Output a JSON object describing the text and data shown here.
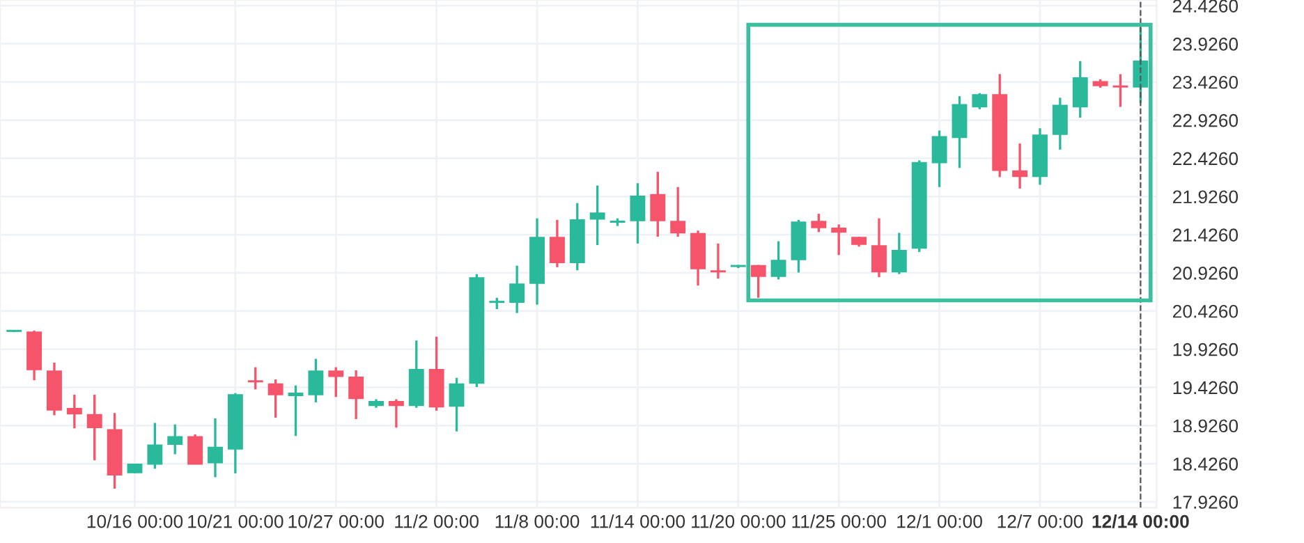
{
  "chart_data": {
    "type": "candlestick",
    "categories": [
      null,
      null,
      null,
      null,
      null,
      null,
      "10/16 00:00",
      null,
      null,
      null,
      null,
      "10/21 00:00",
      null,
      null,
      null,
      null,
      "10/27 00:00",
      null,
      null,
      null,
      null,
      "11/2 00:00",
      null,
      null,
      null,
      null,
      "11/8 00:00",
      null,
      null,
      null,
      null,
      "11/14 00:00",
      null,
      null,
      null,
      null,
      "11/20 00:00",
      null,
      null,
      null,
      null,
      "11/25 00:00",
      null,
      null,
      null,
      null,
      "12/1 00:00",
      null,
      null,
      null,
      null,
      "12/7 00:00",
      null,
      null,
      null,
      null,
      "12/14 00:00"
    ],
    "ohlc": [
      [
        20.16,
        20.17,
        20.15,
        20.16
      ],
      [
        20.15,
        20.17,
        19.52,
        19.66
      ],
      [
        19.64,
        19.75,
        19.06,
        19.13
      ],
      [
        19.15,
        19.33,
        18.89,
        19.08
      ],
      [
        19.07,
        19.33,
        18.47,
        18.9
      ],
      [
        18.87,
        19.09,
        18.1,
        18.28
      ],
      [
        18.31,
        18.42,
        18.3,
        18.42
      ],
      [
        18.42,
        18.96,
        18.36,
        18.67
      ],
      [
        18.68,
        18.94,
        18.55,
        18.78
      ],
      [
        18.78,
        18.81,
        18.42,
        18.42
      ],
      [
        18.44,
        19.02,
        18.25,
        18.64
      ],
      [
        18.62,
        19.35,
        18.3,
        19.33
      ],
      [
        19.51,
        19.69,
        19.4,
        19.5
      ],
      [
        19.47,
        19.53,
        19.03,
        19.33
      ],
      [
        19.32,
        19.45,
        18.79,
        19.35
      ],
      [
        19.33,
        19.8,
        19.23,
        19.64
      ],
      [
        19.64,
        19.69,
        19.3,
        19.57
      ],
      [
        19.56,
        19.65,
        19.01,
        19.28
      ],
      [
        19.19,
        19.27,
        19.16,
        19.24
      ],
      [
        19.24,
        19.27,
        18.9,
        19.19
      ],
      [
        19.19,
        20.04,
        19.16,
        19.66
      ],
      [
        19.66,
        20.09,
        19.12,
        19.17
      ],
      [
        19.18,
        19.55,
        18.85,
        19.47
      ],
      [
        19.48,
        20.91,
        19.43,
        20.86
      ],
      [
        20.54,
        20.6,
        20.45,
        20.55
      ],
      [
        20.54,
        21.02,
        20.4,
        20.78
      ],
      [
        20.79,
        21.64,
        20.51,
        21.39
      ],
      [
        21.39,
        21.62,
        21.0,
        21.06
      ],
      [
        21.06,
        21.84,
        20.96,
        21.62
      ],
      [
        21.63,
        22.07,
        21.29,
        21.71
      ],
      [
        21.59,
        21.64,
        21.54,
        21.6
      ],
      [
        21.61,
        22.1,
        21.31,
        21.93
      ],
      [
        21.95,
        22.25,
        21.4,
        21.61
      ],
      [
        21.6,
        22.05,
        21.4,
        21.45
      ],
      [
        21.44,
        21.48,
        20.76,
        20.98
      ],
      [
        20.95,
        21.31,
        20.85,
        20.94
      ],
      [
        21.01,
        21.03,
        20.99,
        21.02
      ],
      [
        21.02,
        21.03,
        20.6,
        20.88
      ],
      [
        20.88,
        21.34,
        20.84,
        21.09
      ],
      [
        21.1,
        21.62,
        20.93,
        21.59
      ],
      [
        21.6,
        21.7,
        21.46,
        21.52
      ],
      [
        21.51,
        21.56,
        21.16,
        21.46
      ],
      [
        21.39,
        21.4,
        21.27,
        21.3
      ],
      [
        21.28,
        21.64,
        20.87,
        20.94
      ],
      [
        20.94,
        21.45,
        20.91,
        21.22
      ],
      [
        21.25,
        22.4,
        21.2,
        22.37
      ],
      [
        22.37,
        22.79,
        22.05,
        22.71
      ],
      [
        22.7,
        23.24,
        22.3,
        23.13
      ],
      [
        23.1,
        23.28,
        23.07,
        23.26
      ],
      [
        23.26,
        23.53,
        22.18,
        22.27
      ],
      [
        22.26,
        22.62,
        22.03,
        22.19
      ],
      [
        22.19,
        22.82,
        22.08,
        22.73
      ],
      [
        22.74,
        23.22,
        22.54,
        23.12
      ],
      [
        23.1,
        23.7,
        22.96,
        23.48
      ],
      [
        23.43,
        23.46,
        23.35,
        23.38
      ],
      [
        23.37,
        23.53,
        23.1,
        23.36
      ],
      [
        23.36,
        24.14,
        23.15,
        23.7
      ]
    ],
    "colors": [
      "#2ab99a",
      "#f6546a",
      "#f6546a",
      "#f6546a",
      "#f6546a",
      "#f6546a",
      "#2ab99a",
      "#2ab99a",
      "#2ab99a",
      "#f6546a",
      "#2ab99a",
      "#2ab99a",
      "#f6546a",
      "#f6546a",
      "#2ab99a",
      "#2ab99a",
      "#f6546a",
      "#f6546a",
      "#2ab99a",
      "#f6546a",
      "#2ab99a",
      "#f6546a",
      "#2ab99a",
      "#2ab99a",
      "#2ab99a",
      "#2ab99a",
      "#2ab99a",
      "#f6546a",
      "#2ab99a",
      "#2ab99a",
      "#2ab99a",
      "#2ab99a",
      "#f6546a",
      "#f6546a",
      "#f6546a",
      "#f6546a",
      "#2ab99a",
      "#f6546a",
      "#2ab99a",
      "#2ab99a",
      "#f6546a",
      "#f6546a",
      "#f6546a",
      "#f6546a",
      "#2ab99a",
      "#2ab99a",
      "#2ab99a",
      "#2ab99a",
      "#2ab99a",
      "#f6546a",
      "#f6546a",
      "#2ab99a",
      "#2ab99a",
      "#2ab99a",
      "#f6546a",
      "#f6546a",
      "#2ab99a"
    ],
    "ylim": [
      17.85,
      24.5
    ],
    "yticks": [
      {
        "value": 17.926,
        "label": "17.9260"
      },
      {
        "value": 18.426,
        "label": "18.4260"
      },
      {
        "value": 18.926,
        "label": "18.9260"
      },
      {
        "value": 19.426,
        "label": "19.4260"
      },
      {
        "value": 19.926,
        "label": "19.9260"
      },
      {
        "value": 20.426,
        "label": "20.4260"
      },
      {
        "value": 20.926,
        "label": "20.9260"
      },
      {
        "value": 21.426,
        "label": "21.4260"
      },
      {
        "value": 21.926,
        "label": "21.9260"
      },
      {
        "value": 22.426,
        "label": "22.4260"
      },
      {
        "value": 22.926,
        "label": "22.9260"
      },
      {
        "value": 23.426,
        "label": "23.4260"
      },
      {
        "value": 23.926,
        "label": "23.9260"
      },
      {
        "value": 24.426,
        "label": "24.4260"
      }
    ],
    "grid": true,
    "ref_lines": [
      {
        "axis": "x",
        "value": "12/14 00:00",
        "color": "#555555",
        "line_style": "dashed"
      }
    ]
  }
}
